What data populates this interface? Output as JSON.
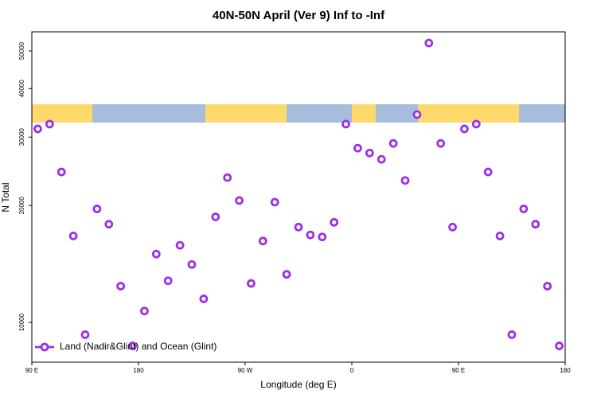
{
  "chart_data": {
    "type": "scatter",
    "title": "40N-50N April (Ver 9)   Inf to -Inf",
    "x_label": "Longitude (deg E)",
    "y_label": "N Total",
    "yscale": "log",
    "xlim": [
      90,
      540
    ],
    "ylim": [
      7900,
      56000
    ],
    "xticks": [
      {
        "value": 90,
        "label": "90 E"
      },
      {
        "value": 180,
        "label": "180"
      },
      {
        "value": 270,
        "label": "90 W"
      },
      {
        "value": 360,
        "label": "0"
      },
      {
        "value": 450,
        "label": "90 E"
      },
      {
        "value": 540,
        "label": "180"
      }
    ],
    "yticks": [
      10000,
      20000,
      30000,
      40000,
      50000
    ],
    "legend_position": "bottom-left",
    "series": [
      {
        "name": "Land (Nadir&Glint) and Ocean (Glint)",
        "color": "#9b30e8",
        "x": [
          95,
          105,
          115,
          125,
          135,
          145,
          155,
          165,
          175,
          185,
          195,
          205,
          215,
          225,
          235,
          245,
          255,
          265,
          275,
          285,
          295,
          305,
          315,
          325,
          335,
          345,
          355,
          365,
          375,
          385,
          395,
          405,
          415,
          425,
          435,
          445,
          455,
          465,
          475,
          485,
          495,
          505,
          515,
          525,
          535
        ],
        "values": [
          31500,
          32400,
          24400,
          16700,
          9300,
          19600,
          17900,
          12400,
          8700,
          10700,
          15000,
          12800,
          15800,
          14100,
          11500,
          18700,
          23600,
          20600,
          12600,
          16200,
          20400,
          13300,
          17600,
          16800,
          16600,
          18100,
          32400,
          28100,
          27300,
          26300,
          28900,
          23200,
          34300,
          52400,
          28900,
          17600,
          31500,
          32400,
          24400,
          16700,
          9300,
          19600,
          17900,
          12400,
          8700
        ]
      }
    ]
  }
}
